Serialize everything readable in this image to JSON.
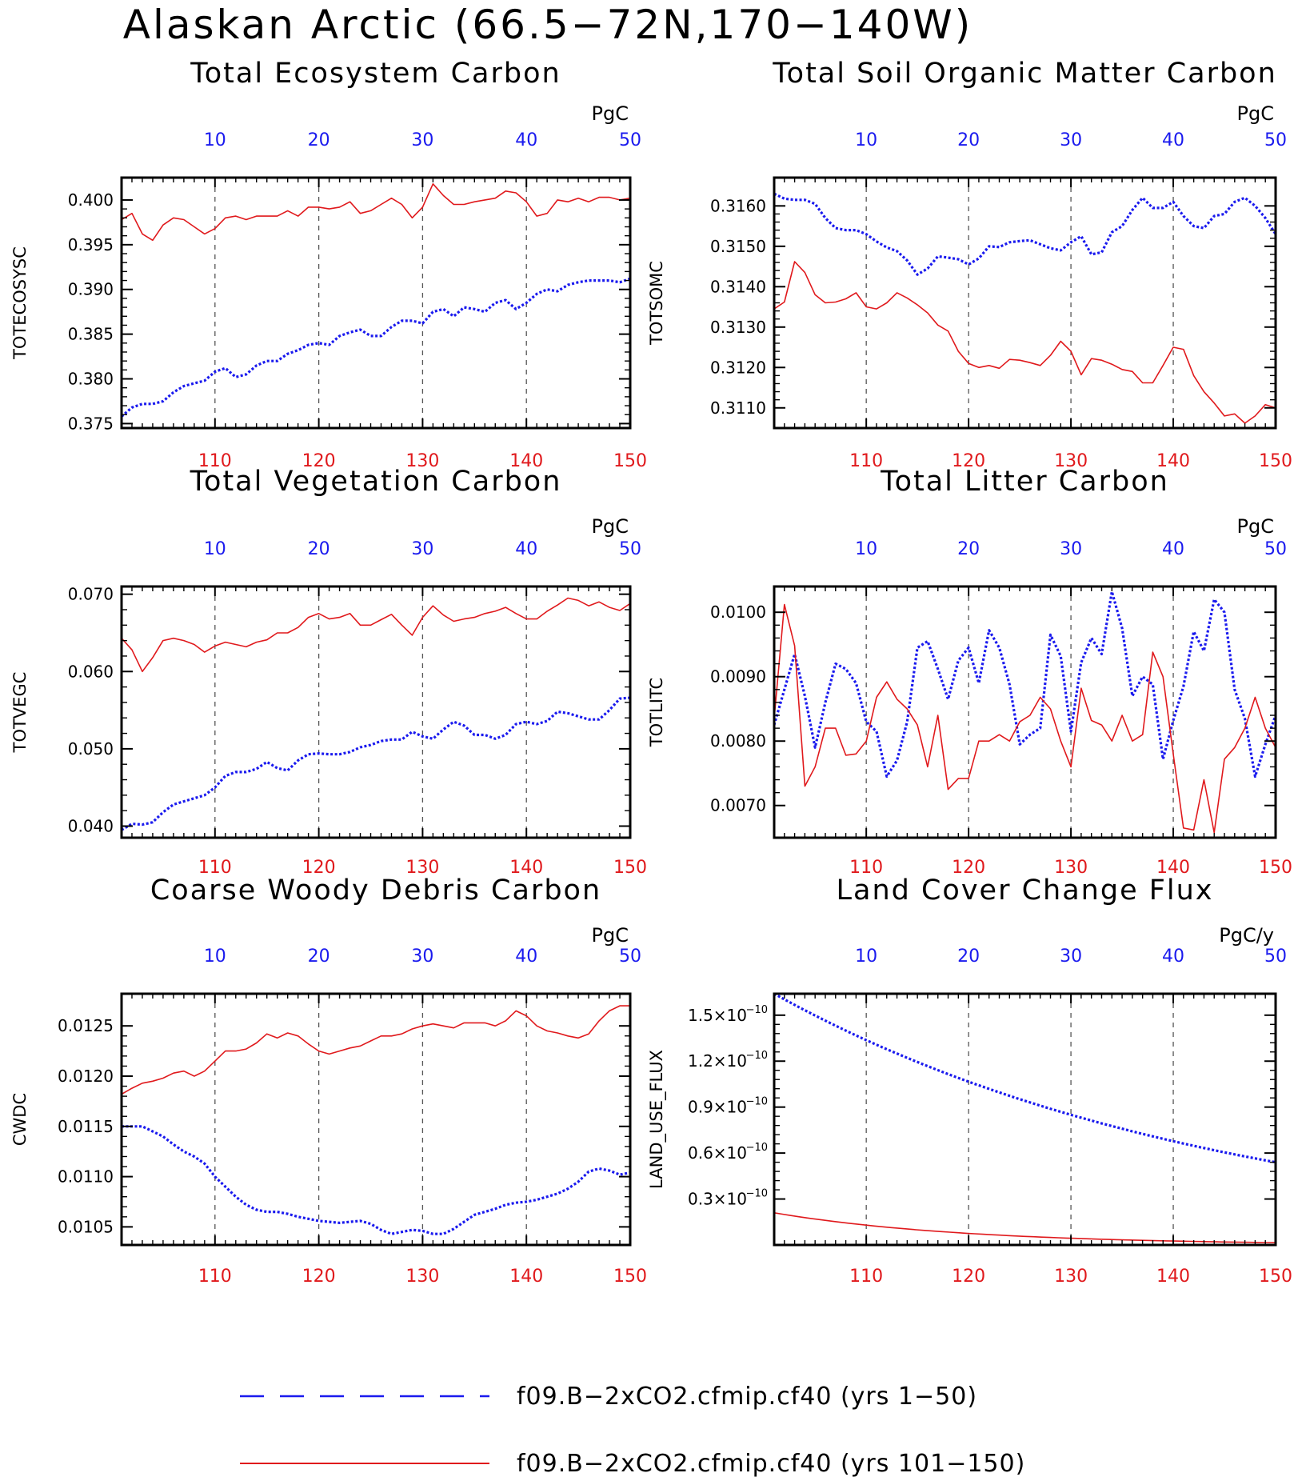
{
  "page": {
    "title": "Alaskan Arctic (66.5−72N,170−140W)"
  },
  "colors": {
    "series_a": "#1a1aee",
    "series_b": "#e0191c"
  },
  "legend": {
    "series_a_label": "f09.B−2xCO2.cfmip.cf40 (yrs 1−50)",
    "series_b_label": "f09.B−2xCO2.cfmip.cf40 (yrs 101−150)"
  },
  "chart_data": [
    {
      "type": "line",
      "title": "Total Ecosystem Carbon",
      "ylabel": "TOTECOSYSC",
      "units": "PgC",
      "x_bottom_range": [
        101,
        150
      ],
      "x_top_range": [
        1,
        50
      ],
      "x_bottom_ticks": [
        110,
        120,
        130,
        140,
        150
      ],
      "x_top_ticks": [
        10,
        20,
        30,
        40,
        50
      ],
      "ylim": [
        0.3745,
        0.4025
      ],
      "yticks": [
        0.375,
        0.38,
        0.385,
        0.39,
        0.395,
        0.4
      ],
      "ytick_labels": [
        "0.375",
        "0.380",
        "0.385",
        "0.390",
        "0.395",
        "0.400"
      ],
      "series": [
        {
          "legend": "series_a_label",
          "color": "series_a",
          "style": "dotted",
          "axis": "top",
          "values": [
            0.3758,
            0.3768,
            0.3772,
            0.3772,
            0.3775,
            0.3785,
            0.3792,
            0.3795,
            0.3798,
            0.3808,
            0.3812,
            0.3802,
            0.3805,
            0.3815,
            0.382,
            0.382,
            0.3828,
            0.3832,
            0.3838,
            0.384,
            0.3838,
            0.3848,
            0.3852,
            0.3855,
            0.3848,
            0.3848,
            0.3858,
            0.3865,
            0.3865,
            0.3862,
            0.3875,
            0.3878,
            0.387,
            0.388,
            0.3878,
            0.3875,
            0.3885,
            0.3888,
            0.3878,
            0.3885,
            0.3895,
            0.39,
            0.3898,
            0.3905,
            0.3908,
            0.391,
            0.391,
            0.391,
            0.3908,
            0.3912
          ]
        },
        {
          "legend": "series_b_label",
          "color": "series_b",
          "style": "solid",
          "axis": "bottom",
          "values": [
            0.3978,
            0.3985,
            0.3962,
            0.3955,
            0.3972,
            0.398,
            0.3978,
            0.397,
            0.3962,
            0.3968,
            0.398,
            0.3982,
            0.3978,
            0.3982,
            0.3982,
            0.3982,
            0.3988,
            0.3982,
            0.3992,
            0.3992,
            0.399,
            0.3992,
            0.3998,
            0.3985,
            0.3988,
            0.3995,
            0.4002,
            0.3995,
            0.398,
            0.3992,
            0.4018,
            0.4005,
            0.3995,
            0.3995,
            0.3998,
            0.4,
            0.4002,
            0.401,
            0.4008,
            0.3998,
            0.3982,
            0.3985,
            0.4,
            0.3998,
            0.4002,
            0.3998,
            0.4003,
            0.4003,
            0.4,
            0.4002
          ]
        }
      ]
    },
    {
      "type": "line",
      "title": "Total Soil Organic Matter Carbon",
      "ylabel": "TOTSOMC",
      "units": "PgC",
      "x_bottom_range": [
        101,
        150
      ],
      "x_top_range": [
        1,
        50
      ],
      "x_bottom_ticks": [
        110,
        120,
        130,
        140,
        150
      ],
      "x_top_ticks": [
        10,
        20,
        30,
        40,
        50
      ],
      "ylim": [
        0.3105,
        0.3167
      ],
      "yticks": [
        0.311,
        0.312,
        0.313,
        0.314,
        0.315,
        0.316
      ],
      "ytick_labels": [
        "0.3110",
        "0.3120",
        "0.3130",
        "0.3140",
        "0.3150",
        "0.3160"
      ],
      "series": [
        {
          "legend": "series_a_label",
          "color": "series_a",
          "style": "dotted",
          "axis": "top",
          "values": [
            0.3163,
            0.31618,
            0.31615,
            0.31615,
            0.31605,
            0.3157,
            0.31545,
            0.3154,
            0.3154,
            0.3153,
            0.31512,
            0.31497,
            0.31488,
            0.31465,
            0.3143,
            0.31445,
            0.31475,
            0.31472,
            0.31468,
            0.31455,
            0.3147,
            0.315,
            0.31498,
            0.3151,
            0.31513,
            0.31515,
            0.31505,
            0.31495,
            0.3149,
            0.3151,
            0.31525,
            0.3148,
            0.31485,
            0.31535,
            0.3155,
            0.3159,
            0.3162,
            0.31595,
            0.31595,
            0.3161,
            0.31575,
            0.3155,
            0.31545,
            0.31575,
            0.3158,
            0.3161,
            0.3162,
            0.316,
            0.3157,
            0.3153
          ]
        },
        {
          "legend": "series_b_label",
          "color": "series_b",
          "style": "solid",
          "axis": "bottom",
          "values": [
            0.31345,
            0.31362,
            0.31462,
            0.31435,
            0.3138,
            0.3136,
            0.31362,
            0.3137,
            0.31385,
            0.3135,
            0.31345,
            0.3136,
            0.31385,
            0.31372,
            0.31355,
            0.31335,
            0.31305,
            0.3129,
            0.3124,
            0.3121,
            0.312,
            0.31205,
            0.31198,
            0.3122,
            0.31218,
            0.31212,
            0.31205,
            0.3123,
            0.31265,
            0.3124,
            0.31182,
            0.31222,
            0.31218,
            0.31208,
            0.31195,
            0.3119,
            0.31162,
            0.31162,
            0.31205,
            0.3125,
            0.31245,
            0.3118,
            0.3114,
            0.31112,
            0.3108,
            0.31085,
            0.31062,
            0.3108,
            0.31108,
            0.311
          ]
        }
      ]
    },
    {
      "type": "line",
      "title": "Total Vegetation Carbon",
      "ylabel": "TOTVEGC",
      "units": "PgC",
      "x_bottom_range": [
        101,
        150
      ],
      "x_top_range": [
        1,
        50
      ],
      "x_bottom_ticks": [
        110,
        120,
        130,
        140,
        150
      ],
      "x_top_ticks": [
        10,
        20,
        30,
        40,
        50
      ],
      "ylim": [
        0.0385,
        0.071
      ],
      "yticks": [
        0.04,
        0.05,
        0.06,
        0.07
      ],
      "ytick_labels": [
        "0.040",
        "0.050",
        "0.060",
        "0.070"
      ],
      "series": [
        {
          "legend": "series_a_label",
          "color": "series_a",
          "style": "dotted",
          "axis": "top",
          "values": [
            0.0395,
            0.0403,
            0.0402,
            0.0405,
            0.0418,
            0.0428,
            0.0432,
            0.0436,
            0.044,
            0.045,
            0.0465,
            0.047,
            0.047,
            0.0474,
            0.0483,
            0.0475,
            0.0472,
            0.0485,
            0.0493,
            0.0494,
            0.0493,
            0.0493,
            0.0496,
            0.0502,
            0.0505,
            0.051,
            0.0512,
            0.0512,
            0.0522,
            0.0516,
            0.0513,
            0.0525,
            0.0535,
            0.053,
            0.0518,
            0.0518,
            0.0513,
            0.0518,
            0.0532,
            0.0535,
            0.0532,
            0.0536,
            0.0548,
            0.0546,
            0.0542,
            0.0538,
            0.0538,
            0.055,
            0.0565,
            0.0566
          ]
        },
        {
          "legend": "series_b_label",
          "color": "series_b",
          "style": "solid",
          "axis": "bottom",
          "values": [
            0.0643,
            0.0628,
            0.06,
            0.0618,
            0.064,
            0.0643,
            0.064,
            0.0635,
            0.0625,
            0.0633,
            0.0638,
            0.0635,
            0.0632,
            0.0638,
            0.0641,
            0.065,
            0.065,
            0.0657,
            0.067,
            0.0675,
            0.0668,
            0.067,
            0.0675,
            0.066,
            0.066,
            0.0667,
            0.0674,
            0.066,
            0.0647,
            0.067,
            0.0685,
            0.0673,
            0.0665,
            0.0668,
            0.067,
            0.0675,
            0.0678,
            0.0683,
            0.0675,
            0.0668,
            0.0668,
            0.0678,
            0.0686,
            0.0695,
            0.0692,
            0.0685,
            0.069,
            0.0683,
            0.0679,
            0.0688
          ]
        }
      ]
    },
    {
      "type": "line",
      "title": "Total Litter Carbon",
      "ylabel": "TOTLITC",
      "units": "PgC",
      "x_bottom_range": [
        101,
        150
      ],
      "x_top_range": [
        1,
        50
      ],
      "x_bottom_ticks": [
        110,
        120,
        130,
        140,
        150
      ],
      "x_top_ticks": [
        10,
        20,
        30,
        40,
        50
      ],
      "ylim": [
        0.0065,
        0.0104
      ],
      "yticks": [
        0.007,
        0.008,
        0.009,
        0.01
      ],
      "ytick_labels": [
        "0.0070",
        "0.0080",
        "0.0090",
        "0.0100"
      ],
      "series": [
        {
          "legend": "series_a_label",
          "color": "series_a",
          "style": "dotted",
          "axis": "top",
          "values": [
            0.00825,
            0.0088,
            0.00935,
            0.0087,
            0.0079,
            0.0086,
            0.0092,
            0.00912,
            0.0089,
            0.0083,
            0.00815,
            0.00745,
            0.0077,
            0.0083,
            0.00945,
            0.00955,
            0.00912,
            0.00865,
            0.00925,
            0.00945,
            0.0089,
            0.00972,
            0.00945,
            0.00888,
            0.00795,
            0.0081,
            0.0082,
            0.00965,
            0.00932,
            0.00815,
            0.00922,
            0.0096,
            0.00935,
            0.01032,
            0.00975,
            0.0087,
            0.009,
            0.00888,
            0.00772,
            0.00832,
            0.00885,
            0.0097,
            0.0094,
            0.0102,
            0.01,
            0.0088,
            0.00835,
            0.00745,
            0.00795,
            0.0084
          ]
        },
        {
          "legend": "series_b_label",
          "color": "series_b",
          "style": "solid",
          "axis": "bottom",
          "values": [
            0.00835,
            0.01012,
            0.00948,
            0.0073,
            0.0076,
            0.0082,
            0.0082,
            0.00778,
            0.0078,
            0.008,
            0.00868,
            0.00892,
            0.00865,
            0.0085,
            0.00825,
            0.0076,
            0.0084,
            0.00725,
            0.00742,
            0.00742,
            0.008,
            0.008,
            0.0081,
            0.008,
            0.0083,
            0.0084,
            0.00868,
            0.0085,
            0.008,
            0.0076,
            0.00882,
            0.00832,
            0.00825,
            0.008,
            0.0084,
            0.008,
            0.0081,
            0.00938,
            0.009,
            0.0078,
            0.00665,
            0.00662,
            0.0074,
            0.00658,
            0.00772,
            0.0079,
            0.0082,
            0.00868,
            0.0082,
            0.0079
          ]
        }
      ]
    },
    {
      "type": "line",
      "title": "Coarse Woody Debris Carbon",
      "ylabel": "CWDC",
      "units": "PgC",
      "x_bottom_range": [
        101,
        150
      ],
      "x_top_range": [
        1,
        50
      ],
      "x_bottom_ticks": [
        110,
        120,
        130,
        140,
        150
      ],
      "x_top_ticks": [
        10,
        20,
        30,
        40,
        50
      ],
      "ylim": [
        0.01032,
        0.01282
      ],
      "yticks": [
        0.0105,
        0.011,
        0.0115,
        0.012,
        0.0125
      ],
      "ytick_labels": [
        "0.0105",
        "0.0110",
        "0.0115",
        "0.0120",
        "0.0125"
      ],
      "series": [
        {
          "legend": "series_a_label",
          "color": "series_a",
          "style": "dotted",
          "axis": "top",
          "values": [
            0.0115,
            0.0115,
            0.0115,
            0.01145,
            0.0114,
            0.01132,
            0.01125,
            0.0112,
            0.01113,
            0.011,
            0.0109,
            0.0108,
            0.01072,
            0.01067,
            0.01065,
            0.01065,
            0.01063,
            0.0106,
            0.01058,
            0.01056,
            0.01055,
            0.01054,
            0.01055,
            0.01056,
            0.01053,
            0.01047,
            0.01043,
            0.01045,
            0.01047,
            0.01046,
            0.01043,
            0.01043,
            0.01048,
            0.01055,
            0.01062,
            0.01065,
            0.01068,
            0.01072,
            0.01074,
            0.01075,
            0.01077,
            0.0108,
            0.01083,
            0.01088,
            0.01095,
            0.01105,
            0.01108,
            0.01106,
            0.01102,
            0.01104
          ]
        },
        {
          "legend": "series_b_label",
          "color": "series_b",
          "style": "solid",
          "axis": "bottom",
          "values": [
            0.01182,
            0.01188,
            0.01193,
            0.01195,
            0.01198,
            0.01203,
            0.01205,
            0.012,
            0.01205,
            0.01215,
            0.01225,
            0.01225,
            0.01227,
            0.01233,
            0.01242,
            0.01238,
            0.01243,
            0.0124,
            0.01232,
            0.01225,
            0.01222,
            0.01225,
            0.01228,
            0.0123,
            0.01235,
            0.0124,
            0.0124,
            0.01242,
            0.01247,
            0.0125,
            0.01252,
            0.0125,
            0.01248,
            0.01253,
            0.01253,
            0.01253,
            0.0125,
            0.01255,
            0.01265,
            0.0126,
            0.0125,
            0.01245,
            0.01243,
            0.0124,
            0.01238,
            0.01242,
            0.01255,
            0.01265,
            0.0127,
            0.0127
          ]
        }
      ]
    },
    {
      "type": "line",
      "title": "Land Cover Change Flux",
      "ylabel": "LAND_USE_FLUX",
      "units": "PgC/y",
      "x_bottom_range": [
        101,
        150
      ],
      "x_top_range": [
        1,
        50
      ],
      "x_bottom_ticks": [
        110,
        120,
        130,
        140,
        150
      ],
      "x_top_ticks": [
        10,
        20,
        30,
        40,
        50
      ],
      "ylim": [
        0.0,
        1.64e-10
      ],
      "yticks": [
        3e-11,
        6e-11,
        9e-11,
        1.2e-10,
        1.5e-10
      ],
      "ytick_labels": [
        "0.3×10",
        "0.6×10",
        "0.9×10",
        "1.2×10",
        "1.5×10"
      ],
      "ytick_exponent": "−10",
      "series": [
        {
          "legend": "series_a_label",
          "color": "series_a",
          "style": "dotted",
          "axis": "top",
          "function": "exponential",
          "x_first": 1,
          "y_first": 1.64e-10,
          "x_last": 50,
          "y_last": 5.4e-11
        },
        {
          "legend": "series_b_label",
          "color": "series_b",
          "style": "solid",
          "axis": "bottom",
          "function": "exponential",
          "x_first": 101,
          "y_first": 2.1e-11,
          "x_last": 150,
          "y_last": 1.5e-12
        }
      ]
    }
  ]
}
